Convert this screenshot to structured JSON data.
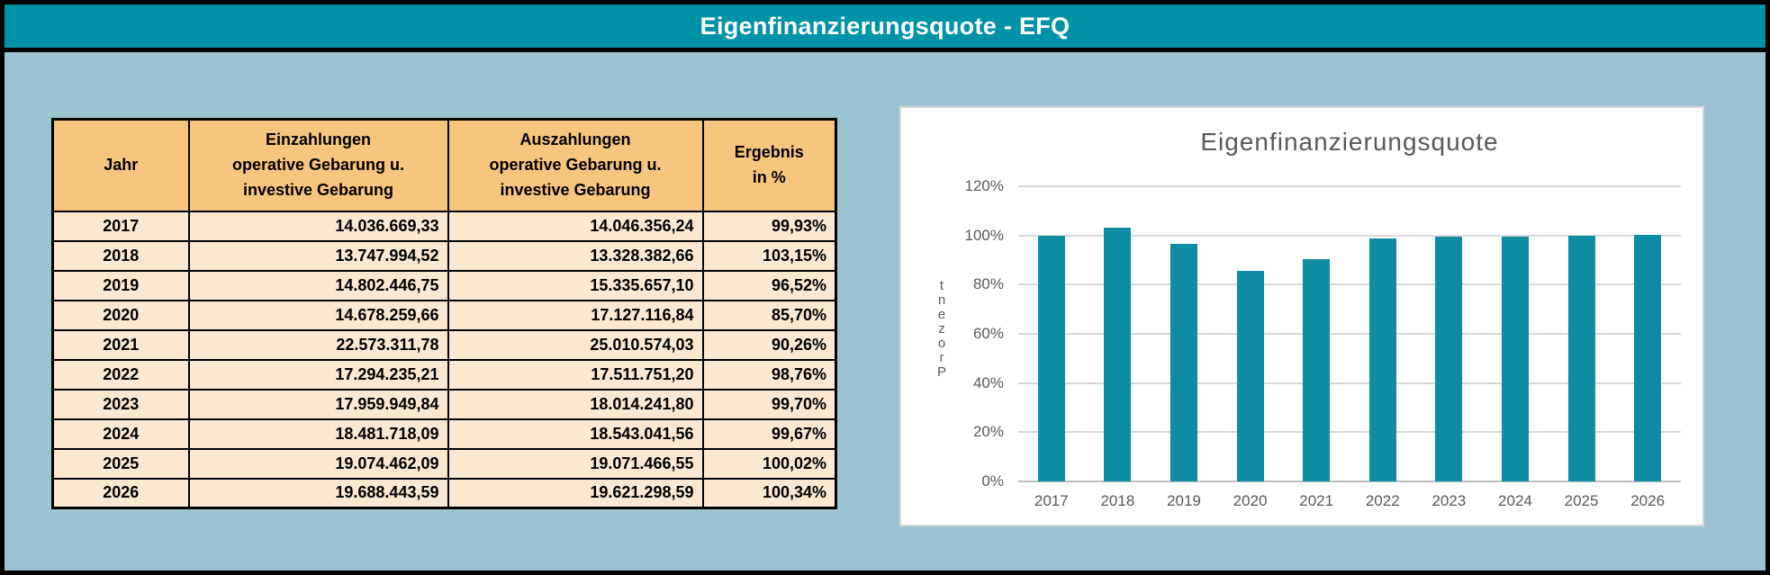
{
  "header": {
    "title": "Eigenfinanzierungsquote - EFQ"
  },
  "table": {
    "columns": [
      {
        "lines": [
          "Jahr"
        ]
      },
      {
        "lines": [
          "Einzahlungen",
          "operative Gebarung u.",
          "investive Gebarung"
        ]
      },
      {
        "lines": [
          "Auszahlungen",
          "operative Gebarung u.",
          "investive Gebarung"
        ]
      },
      {
        "lines": [
          "Ergebnis",
          "in %"
        ]
      }
    ],
    "rows": [
      {
        "jahr": "2017",
        "einzahlungen": "14.036.669,33",
        "auszahlungen": "14.046.356,24",
        "ergebnis": "99,93%"
      },
      {
        "jahr": "2018",
        "einzahlungen": "13.747.994,52",
        "auszahlungen": "13.328.382,66",
        "ergebnis": "103,15%"
      },
      {
        "jahr": "2019",
        "einzahlungen": "14.802.446,75",
        "auszahlungen": "15.335.657,10",
        "ergebnis": "96,52%"
      },
      {
        "jahr": "2020",
        "einzahlungen": "14.678.259,66",
        "auszahlungen": "17.127.116,84",
        "ergebnis": "85,70%"
      },
      {
        "jahr": "2021",
        "einzahlungen": "22.573.311,78",
        "auszahlungen": "25.010.574,03",
        "ergebnis": "90,26%"
      },
      {
        "jahr": "2022",
        "einzahlungen": "17.294.235,21",
        "auszahlungen": "17.511.751,20",
        "ergebnis": "98,76%"
      },
      {
        "jahr": "2023",
        "einzahlungen": "17.959.949,84",
        "auszahlungen": "18.014.241,80",
        "ergebnis": "99,70%"
      },
      {
        "jahr": "2024",
        "einzahlungen": "18.481.718,09",
        "auszahlungen": "18.543.041,56",
        "ergebnis": "99,67%"
      },
      {
        "jahr": "2025",
        "einzahlungen": "19.074.462,09",
        "auszahlungen": "19.071.466,55",
        "ergebnis": "100,02%"
      },
      {
        "jahr": "2026",
        "einzahlungen": "19.688.443,59",
        "auszahlungen": "19.621.298,59",
        "ergebnis": "100,34%"
      }
    ]
  },
  "chart_data": {
    "type": "bar",
    "title": "Eigenfinanzierungsquote",
    "categories": [
      "2017",
      "2018",
      "2019",
      "2020",
      "2021",
      "2022",
      "2023",
      "2024",
      "2025",
      "2026"
    ],
    "values": [
      99.93,
      103.15,
      96.52,
      85.7,
      90.26,
      98.76,
      99.7,
      99.67,
      100.02,
      100.34
    ],
    "ylabel": "Prozent",
    "ylabel_display": "stacked-letters-bottom-up",
    "ytick_labels": [
      "0%",
      "20%",
      "40%",
      "60%",
      "80%",
      "100%",
      "120%"
    ],
    "ylim": [
      0,
      120
    ],
    "grid": true,
    "legend_position": "none",
    "bar_color": "#0E8DA2"
  },
  "colors": {
    "banner_teal": "#0092A7",
    "background_blue": "#9BC4D2",
    "table_header_fill": "#F8C57E",
    "table_row_fill": "#FCE8D0",
    "bar_teal": "#0E8DA2",
    "chart_text": "#595959",
    "gridline": "#D9D9D9",
    "border": "#000000"
  }
}
